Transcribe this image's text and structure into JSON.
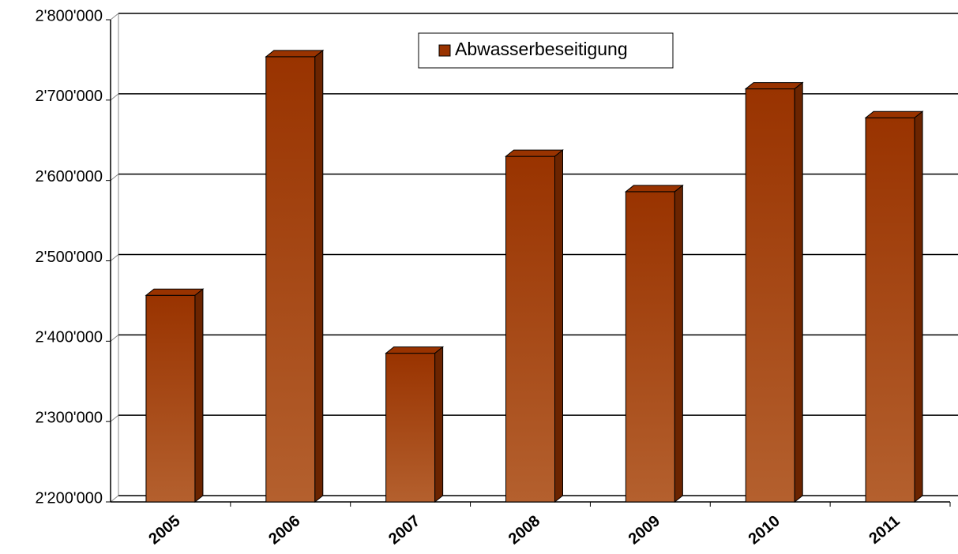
{
  "chart_data": {
    "type": "bar3d",
    "categories": [
      "2005",
      "2006",
      "2007",
      "2008",
      "2009",
      "2010",
      "2011"
    ],
    "series": [
      {
        "name": "Abwasserbeseitigung",
        "color": "#993300",
        "values": [
          2457000,
          2754000,
          2385000,
          2630000,
          2586000,
          2714000,
          2678000
        ]
      }
    ],
    "ylim": [
      2200000,
      2800000
    ],
    "yticks": [
      {
        "value": 2200000,
        "label": "2'200'000"
      },
      {
        "value": 2300000,
        "label": "2'300'000"
      },
      {
        "value": 2400000,
        "label": "2'400'000"
      },
      {
        "value": 2500000,
        "label": "2'500'000"
      },
      {
        "value": 2600000,
        "label": "2'600'000"
      },
      {
        "value": 2700000,
        "label": "2'700'000"
      },
      {
        "value": 2800000,
        "label": "2'800'000"
      }
    ],
    "grid": true
  }
}
